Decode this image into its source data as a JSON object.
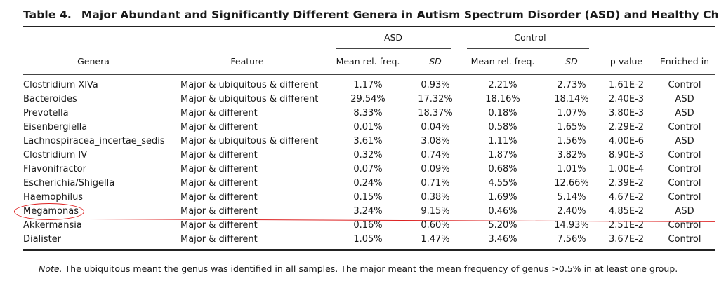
{
  "table": {
    "number": "Table 4.",
    "title": "Major Abundant and Significantly Different Genera in Autism Spectrum Disorder (ASD) and Healthy Children",
    "group_headers": {
      "asd": "ASD",
      "control": "Control"
    },
    "columns": {
      "genera": "Genera",
      "feature": "Feature",
      "asd_mean": "Mean rel. freq.",
      "asd_sd": "SD",
      "ctrl_mean": "Mean rel. freq.",
      "ctrl_sd": "SD",
      "pvalue": "p-value",
      "enriched": "Enriched in"
    },
    "rows": [
      {
        "genera": "Clostridium XlVa",
        "feature": "Major & ubiquitous & different",
        "asd_mean": "1.17%",
        "asd_sd": "0.93%",
        "ctrl_mean": "2.21%",
        "ctrl_sd": "2.73%",
        "pvalue": "1.61E-2",
        "enriched": "Control"
      },
      {
        "genera": "Bacteroides",
        "feature": "Major & ubiquitous & different",
        "asd_mean": "29.54%",
        "asd_sd": "17.32%",
        "ctrl_mean": "18.16%",
        "ctrl_sd": "18.14%",
        "pvalue": "2.40E-3",
        "enriched": "ASD"
      },
      {
        "genera": "Prevotella",
        "feature": "Major & different",
        "asd_mean": "8.33%",
        "asd_sd": "18.37%",
        "ctrl_mean": "0.18%",
        "ctrl_sd": "1.07%",
        "pvalue": "3.80E-3",
        "enriched": "ASD"
      },
      {
        "genera": "Eisenbergiella",
        "feature": "Major & different",
        "asd_mean": "0.01%",
        "asd_sd": "0.04%",
        "ctrl_mean": "0.58%",
        "ctrl_sd": "1.65%",
        "pvalue": "2.29E-2",
        "enriched": "Control"
      },
      {
        "genera": "Lachnospiracea_incertae_sedis",
        "feature": "Major & ubiquitous & different",
        "asd_mean": "3.61%",
        "asd_sd": "3.08%",
        "ctrl_mean": "1.11%",
        "ctrl_sd": "1.56%",
        "pvalue": "4.00E-6",
        "enriched": "ASD"
      },
      {
        "genera": "Clostridium IV",
        "feature": "Major & different",
        "asd_mean": "0.32%",
        "asd_sd": "0.74%",
        "ctrl_mean": "1.87%",
        "ctrl_sd": "3.82%",
        "pvalue": "8.90E-3",
        "enriched": "Control"
      },
      {
        "genera": "Flavonifractor",
        "feature": "Major & different",
        "asd_mean": "0.07%",
        "asd_sd": "0.09%",
        "ctrl_mean": "0.68%",
        "ctrl_sd": "1.01%",
        "pvalue": "1.00E-4",
        "enriched": "Control"
      },
      {
        "genera": "Escherichia/Shigella",
        "feature": "Major & different",
        "asd_mean": "0.24%",
        "asd_sd": "0.71%",
        "ctrl_mean": "4.55%",
        "ctrl_sd": "12.66%",
        "pvalue": "2.39E-2",
        "enriched": "Control"
      },
      {
        "genera": "Haemophilus",
        "feature": "Major & different",
        "asd_mean": "0.15%",
        "asd_sd": "0.38%",
        "ctrl_mean": "1.69%",
        "ctrl_sd": "5.14%",
        "pvalue": "4.67E-2",
        "enriched": "Control"
      },
      {
        "genera": "Megamonas",
        "feature": "Major & different",
        "asd_mean": "3.24%",
        "asd_sd": "9.15%",
        "ctrl_mean": "0.46%",
        "ctrl_sd": "2.40%",
        "pvalue": "4.85E-2",
        "enriched": "ASD"
      },
      {
        "genera": "Akkermansia",
        "feature": "Major & different",
        "asd_mean": "0.16%",
        "asd_sd": "0.60%",
        "ctrl_mean": "5.20%",
        "ctrl_sd": "14.93%",
        "pvalue": "2.51E-2",
        "enriched": "Control"
      },
      {
        "genera": "Dialister",
        "feature": "Major & different",
        "asd_mean": "1.05%",
        "asd_sd": "1.47%",
        "ctrl_mean": "3.46%",
        "ctrl_sd": "7.56%",
        "pvalue": "3.67E-2",
        "enriched": "Control"
      }
    ],
    "note": {
      "label": "Note.",
      "text": " The ubiquitous meant the genus was identified in all samples. The major meant the mean frequency of genus >0.5% in at least one group."
    }
  },
  "colors": {
    "annotation": "#dd2222"
  }
}
